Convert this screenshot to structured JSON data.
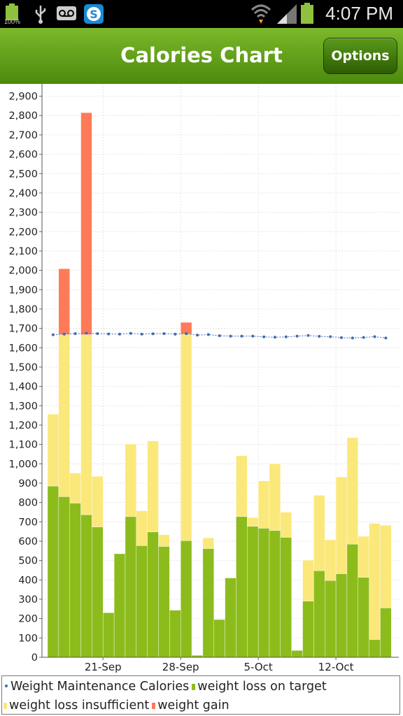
{
  "status_bar": {
    "battery_level": "100%",
    "time": "4:07 PM",
    "icons": [
      "battery-icon",
      "usb-icon",
      "voicemail-icon",
      "skype-icon",
      "wifi-icon",
      "signal-icon"
    ]
  },
  "header": {
    "title": "Calories Chart",
    "options_label": "Options"
  },
  "colors": {
    "on_target": "#8cbc1c",
    "insufficient": "#fbe87a",
    "gain": "#ff7a57",
    "maintenance": "#3f6cad",
    "header": "#5e9e15"
  },
  "legend": {
    "maintenance": "Weight Maintenance Calories",
    "on_target": "weight loss on target",
    "insufficient": "weight loss insufficient",
    "gain": "weight gain"
  },
  "chart_data": {
    "type": "bar",
    "stacked": true,
    "grid": true,
    "ylim": [
      0,
      2950
    ],
    "y_ticks": [
      "0",
      "100",
      "200",
      "300",
      "400",
      "500",
      "600",
      "700",
      "800",
      "900",
      "1,000",
      "1,100",
      "1,200",
      "1,300",
      "1,400",
      "1,500",
      "1,600",
      "1,700",
      "1,800",
      "1,900",
      "2,000",
      "2,100",
      "2,200",
      "2,300",
      "2,400",
      "2,500",
      "2,600",
      "2,700",
      "2,800",
      "2,900"
    ],
    "x_ticks": [
      {
        "label": "21-Sep",
        "day_index": 5
      },
      {
        "label": "28-Sep",
        "day_index": 12
      },
      {
        "label": "5-Oct",
        "day_index": 19
      },
      {
        "label": "12-Oct",
        "day_index": 26
      }
    ],
    "series": [
      {
        "key": "on_target",
        "name": "weight loss on target",
        "values": [
          885,
          830,
          797,
          737,
          673,
          230,
          535,
          727,
          577,
          648,
          573,
          243,
          603,
          10,
          562,
          195,
          410,
          727,
          677,
          667,
          655,
          620,
          35,
          290,
          447,
          397,
          432,
          585,
          413,
          92,
          255
        ]
      },
      {
        "key": "insufficient",
        "name": "weight loss insufficient",
        "values": [
          372,
          838,
          155,
          930,
          262,
          0,
          0,
          375,
          180,
          470,
          60,
          0,
          1068,
          0,
          55,
          0,
          0,
          315,
          45,
          245,
          345,
          130,
          0,
          212,
          390,
          210,
          500,
          550,
          212,
          600,
          427
        ]
      },
      {
        "key": "gain",
        "name": "weight gain",
        "values": [
          0,
          340,
          0,
          1148,
          0,
          0,
          0,
          0,
          0,
          0,
          0,
          0,
          60,
          0,
          0,
          0,
          0,
          0,
          0,
          0,
          0,
          0,
          0,
          0,
          0,
          0,
          0,
          0,
          0,
          0,
          0
        ]
      }
    ],
    "maintenance": {
      "name": "Weight Maintenance Calories",
      "values": [
        1667,
        1670,
        1673,
        1675,
        1673,
        1671,
        1670,
        1674,
        1670,
        1672,
        1673,
        1670,
        1673,
        1665,
        1668,
        1662,
        1660,
        1660,
        1660,
        1656,
        1654,
        1656,
        1660,
        1663,
        1659,
        1657,
        1652,
        1650,
        1653,
        1657,
        1650
      ]
    }
  }
}
